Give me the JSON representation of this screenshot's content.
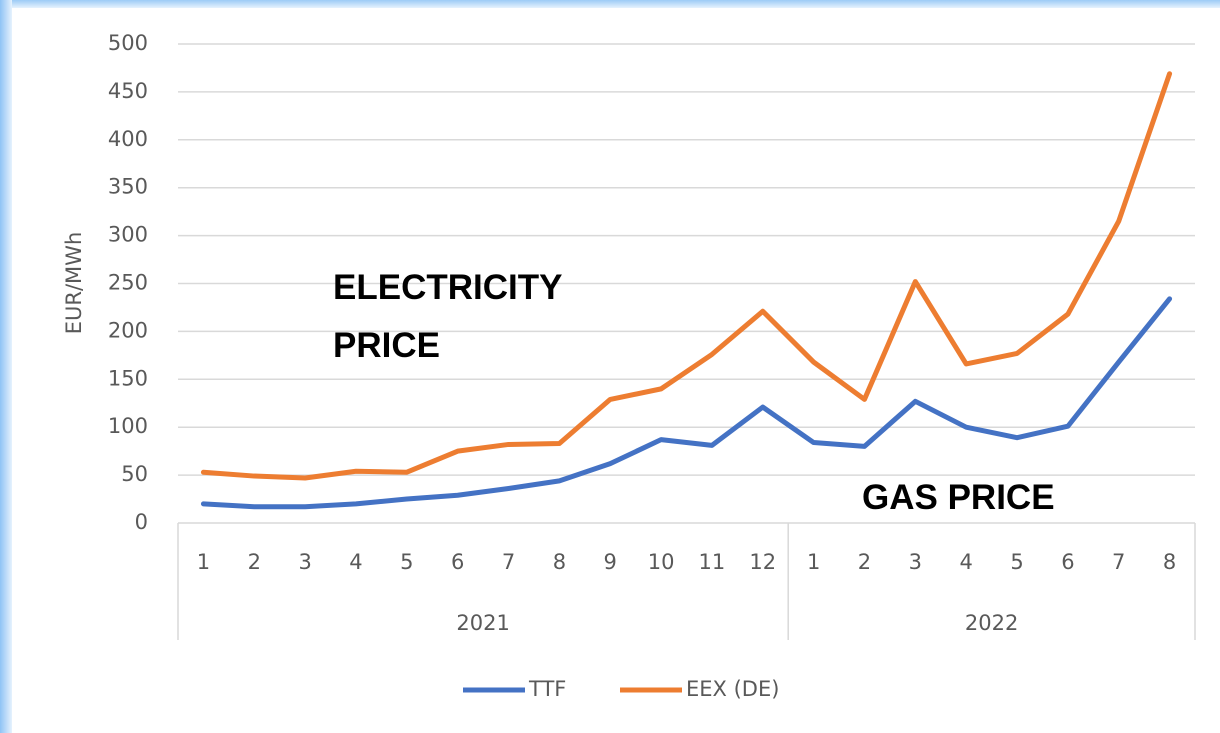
{
  "chart_data": {
    "type": "line",
    "y_label": "EUR/MWh",
    "category_groups": [
      {
        "label": "2021",
        "categories": [
          "1",
          "2",
          "3",
          "4",
          "5",
          "6",
          "7",
          "8",
          "9",
          "10",
          "11",
          "12"
        ]
      },
      {
        "label": "2022",
        "categories": [
          "1",
          "2",
          "3",
          "4",
          "5",
          "6",
          "7",
          "8"
        ]
      }
    ],
    "series": [
      {
        "name": "TTF",
        "color": "#4472c4",
        "values": [
          20,
          17,
          17,
          20,
          25,
          29,
          36,
          44,
          62,
          87,
          81,
          121,
          84,
          80,
          127,
          100,
          89,
          101,
          168,
          234
        ]
      },
      {
        "name": "EEX (DE)",
        "color": "#ed7d31",
        "values": [
          53,
          49,
          47,
          54,
          53,
          75,
          82,
          83,
          129,
          140,
          176,
          221,
          168,
          129,
          252,
          166,
          177,
          218,
          315,
          469
        ]
      }
    ],
    "ylim": [
      0,
      500
    ],
    "yticks": [
      0,
      50,
      100,
      150,
      200,
      250,
      300,
      350,
      400,
      450,
      500
    ],
    "grid": true,
    "legend": "bottom",
    "annotations": [
      {
        "lines": [
          "ELECTRICITY",
          "PRICE"
        ]
      },
      {
        "lines": [
          "GAS PRICE"
        ]
      }
    ]
  }
}
